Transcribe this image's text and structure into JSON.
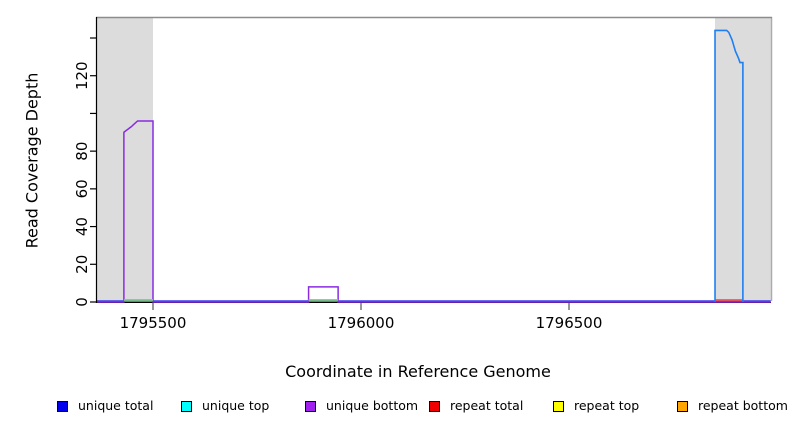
{
  "figure": {
    "x_title": "Coordinate in Reference Genome",
    "y_title": "Read Coverage Depth"
  },
  "legend": {
    "items": [
      {
        "label": "unique total",
        "color": "#0000EE"
      },
      {
        "label": "unique top",
        "color": "#00FFFF"
      },
      {
        "label": "unique bottom",
        "color": "#A020F0"
      },
      {
        "label": "repeat total",
        "color": "#EE0000"
      },
      {
        "label": "repeat top",
        "color": "#FFFF00"
      },
      {
        "label": "repeat bottom",
        "color": "#FFA500"
      }
    ]
  },
  "chart_data": {
    "type": "line",
    "title": "",
    "xlabel": "Coordinate in Reference Genome",
    "ylabel": "Read Coverage Depth",
    "x_axis": {
      "range": [
        1795363,
        1796985
      ],
      "ticks": [
        1795500,
        1796000,
        1796500
      ],
      "tick_labels": [
        "1795500",
        "1796000",
        "1796500"
      ]
    },
    "y_axis": {
      "range": [
        0,
        151
      ],
      "ticks": [
        0,
        20,
        40,
        60,
        80,
        100,
        120,
        140
      ],
      "tick_labels": [
        "0",
        "20",
        "40",
        "60",
        "80",
        "",
        "120",
        ""
      ]
    },
    "grid": "off",
    "legend_position": "bottom",
    "shaded_regions": [
      {
        "x": [
          1795365,
          1795500
        ],
        "fill": "#DCDCDC"
      },
      {
        "x": [
          1796851,
          1796985
        ],
        "fill": "#DCDCDC"
      }
    ],
    "series": [
      {
        "name": "unique-bottom-coverage",
        "color": "#8A2BE2",
        "points": [
          [
            1795363,
            0
          ],
          [
            1795430,
            0
          ],
          [
            1795430,
            90
          ],
          [
            1795436,
            91
          ],
          [
            1795442,
            92
          ],
          [
            1795448,
            93
          ],
          [
            1795453,
            94
          ],
          [
            1795458,
            95
          ],
          [
            1795463,
            96
          ],
          [
            1795500,
            96
          ],
          [
            1795500,
            0
          ],
          [
            1795874,
            0
          ],
          [
            1795874,
            8
          ],
          [
            1795945,
            8
          ],
          [
            1795945,
            0
          ],
          [
            1796985,
            0
          ]
        ]
      },
      {
        "name": "unique-total-coverage",
        "color": "#1E7FF2",
        "points": [
          [
            1796851,
            0
          ],
          [
            1796851,
            144
          ],
          [
            1796879,
            144
          ],
          [
            1796884,
            143
          ],
          [
            1796888,
            141
          ],
          [
            1796892,
            139
          ],
          [
            1796896,
            136
          ],
          [
            1796900,
            133
          ],
          [
            1796904,
            131
          ],
          [
            1796908,
            129
          ],
          [
            1796911,
            127
          ],
          [
            1796918,
            127
          ],
          [
            1796918,
            0
          ]
        ]
      },
      {
        "name": "zero-baseline",
        "color": "#3C3CF0",
        "points": [
          [
            1795363,
            0
          ],
          [
            1796985,
            0
          ]
        ]
      }
    ],
    "zero_overlays": [
      {
        "name": "green-zero-segment",
        "color": "#7CCD7C",
        "segments": [
          [
            1795430,
            1795500
          ],
          [
            1795874,
            1795945
          ]
        ]
      },
      {
        "name": "red-zero-segment",
        "color": "#FF5349",
        "segments": [
          [
            1796851,
            1796918
          ]
        ]
      }
    ]
  }
}
